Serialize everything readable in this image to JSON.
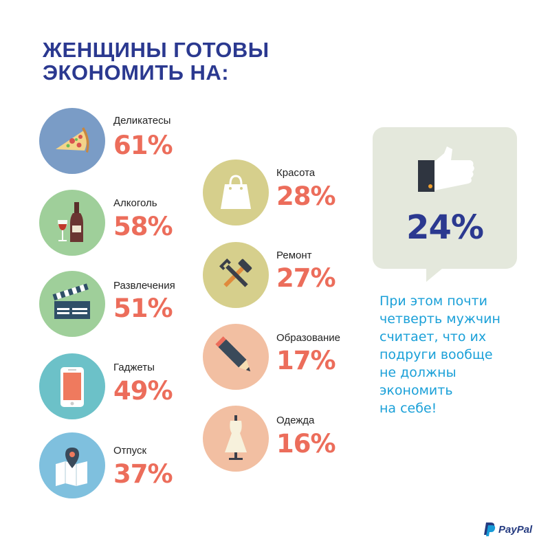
{
  "title": {
    "line1": "ЖЕНЩИНЫ ГОТОВЫ",
    "line2": "ЭКОНОМИТЬ НА:"
  },
  "left_items": [
    {
      "label": "Деликатесы",
      "percent": "61%",
      "icon": "pizza-icon",
      "bg": "#7a9cc6"
    },
    {
      "label": "Алкоголь",
      "percent": "58%",
      "icon": "wine-icon",
      "bg": "#9fcf9a"
    },
    {
      "label": "Развлечения",
      "percent": "51%",
      "icon": "clapperboard-icon",
      "bg": "#9fcf9a"
    },
    {
      "label": "Гаджеты",
      "percent": "49%",
      "icon": "smartphone-icon",
      "bg": "#6cc1c8"
    },
    {
      "label": "Отпуск",
      "percent": "37%",
      "icon": "map-pin-icon",
      "bg": "#7fc0de"
    }
  ],
  "right_items": [
    {
      "label": "Красота",
      "percent": "28%",
      "icon": "shopping-bag-icon",
      "bg": "#d6cf8c"
    },
    {
      "label": "Ремонт",
      "percent": "27%",
      "icon": "tools-icon",
      "bg": "#d6cf8c"
    },
    {
      "label": "Образование",
      "percent": "17%",
      "icon": "pencil-icon",
      "bg": "#f2bfa2"
    },
    {
      "label": "Одежда",
      "percent": "16%",
      "icon": "dress-icon",
      "bg": "#f2bfa2"
    }
  ],
  "bubble": {
    "percent": "24%",
    "icon": "thumbs-up-icon"
  },
  "note": {
    "line1": "При этом почти",
    "line2": "четверть мужчин",
    "line3": "считает, что их",
    "line4": "подруги вообще",
    "line5": "не должны",
    "line6": "экономить",
    "line7": "на себе!"
  },
  "brand": {
    "name": "PayPal"
  },
  "colors": {
    "title": "#2b3990",
    "percent": "#ec6d5b",
    "note": "#1aa0d8",
    "bubble": "#e4e8dc"
  }
}
